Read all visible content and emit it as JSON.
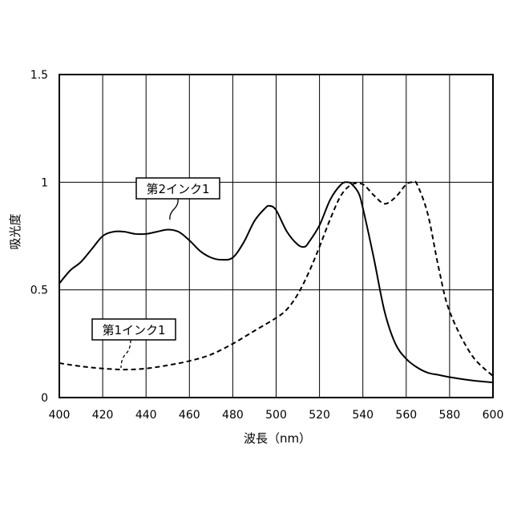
{
  "chart_data": {
    "type": "line",
    "title": "",
    "xlabel": "波長（nm）",
    "ylabel": "吸光度",
    "xlim": [
      400,
      600
    ],
    "ylim": [
      0,
      1.5
    ],
    "xticks": [
      400,
      420,
      440,
      460,
      480,
      500,
      520,
      540,
      560,
      580,
      600
    ],
    "xtick_labels": [
      "400",
      "420",
      "440",
      "460",
      "480",
      "500",
      "520",
      "540",
      "560",
      "580",
      "600"
    ],
    "yticks": [
      0,
      0.5,
      1,
      1.5
    ],
    "ytick_labels": [
      "0",
      "0.5",
      "1",
      "1.5"
    ],
    "grid": true,
    "legend": "callout labels",
    "series": [
      {
        "name": "第2インク1",
        "line_style": "solid",
        "color": "#000000",
        "x": [
          400,
          405,
          410,
          415,
          420,
          425,
          430,
          435,
          440,
          445,
          450,
          455,
          460,
          465,
          470,
          475,
          480,
          485,
          490,
          495,
          497,
          500,
          505,
          510,
          513,
          515,
          520,
          525,
          530,
          533,
          535,
          538,
          540,
          545,
          550,
          555,
          560,
          565,
          570,
          575,
          580,
          590,
          600
        ],
        "y": [
          0.53,
          0.59,
          0.63,
          0.69,
          0.75,
          0.77,
          0.77,
          0.76,
          0.76,
          0.77,
          0.78,
          0.77,
          0.73,
          0.68,
          0.65,
          0.64,
          0.65,
          0.72,
          0.82,
          0.88,
          0.89,
          0.87,
          0.77,
          0.71,
          0.7,
          0.72,
          0.8,
          0.92,
          0.99,
          1.0,
          0.99,
          0.95,
          0.88,
          0.65,
          0.4,
          0.25,
          0.18,
          0.14,
          0.115,
          0.105,
          0.095,
          0.08,
          0.07
        ]
      },
      {
        "name": "第1インク1",
        "line_style": "dashed",
        "color": "#000000",
        "x": [
          400,
          410,
          420,
          430,
          440,
          450,
          460,
          470,
          480,
          490,
          500,
          505,
          510,
          515,
          520,
          525,
          530,
          535,
          540,
          545,
          550,
          555,
          560,
          563,
          565,
          570,
          575,
          580,
          590,
          600
        ],
        "y": [
          0.16,
          0.145,
          0.135,
          0.13,
          0.135,
          0.15,
          0.17,
          0.2,
          0.25,
          0.31,
          0.37,
          0.41,
          0.48,
          0.58,
          0.7,
          0.83,
          0.94,
          0.99,
          0.99,
          0.94,
          0.9,
          0.93,
          0.99,
          1.0,
          0.99,
          0.85,
          0.6,
          0.4,
          0.2,
          0.1
        ]
      }
    ],
    "annotations": [
      {
        "text": "第2インク1",
        "target_series": 0
      },
      {
        "text": "第1インク1",
        "target_series": 1
      }
    ]
  }
}
